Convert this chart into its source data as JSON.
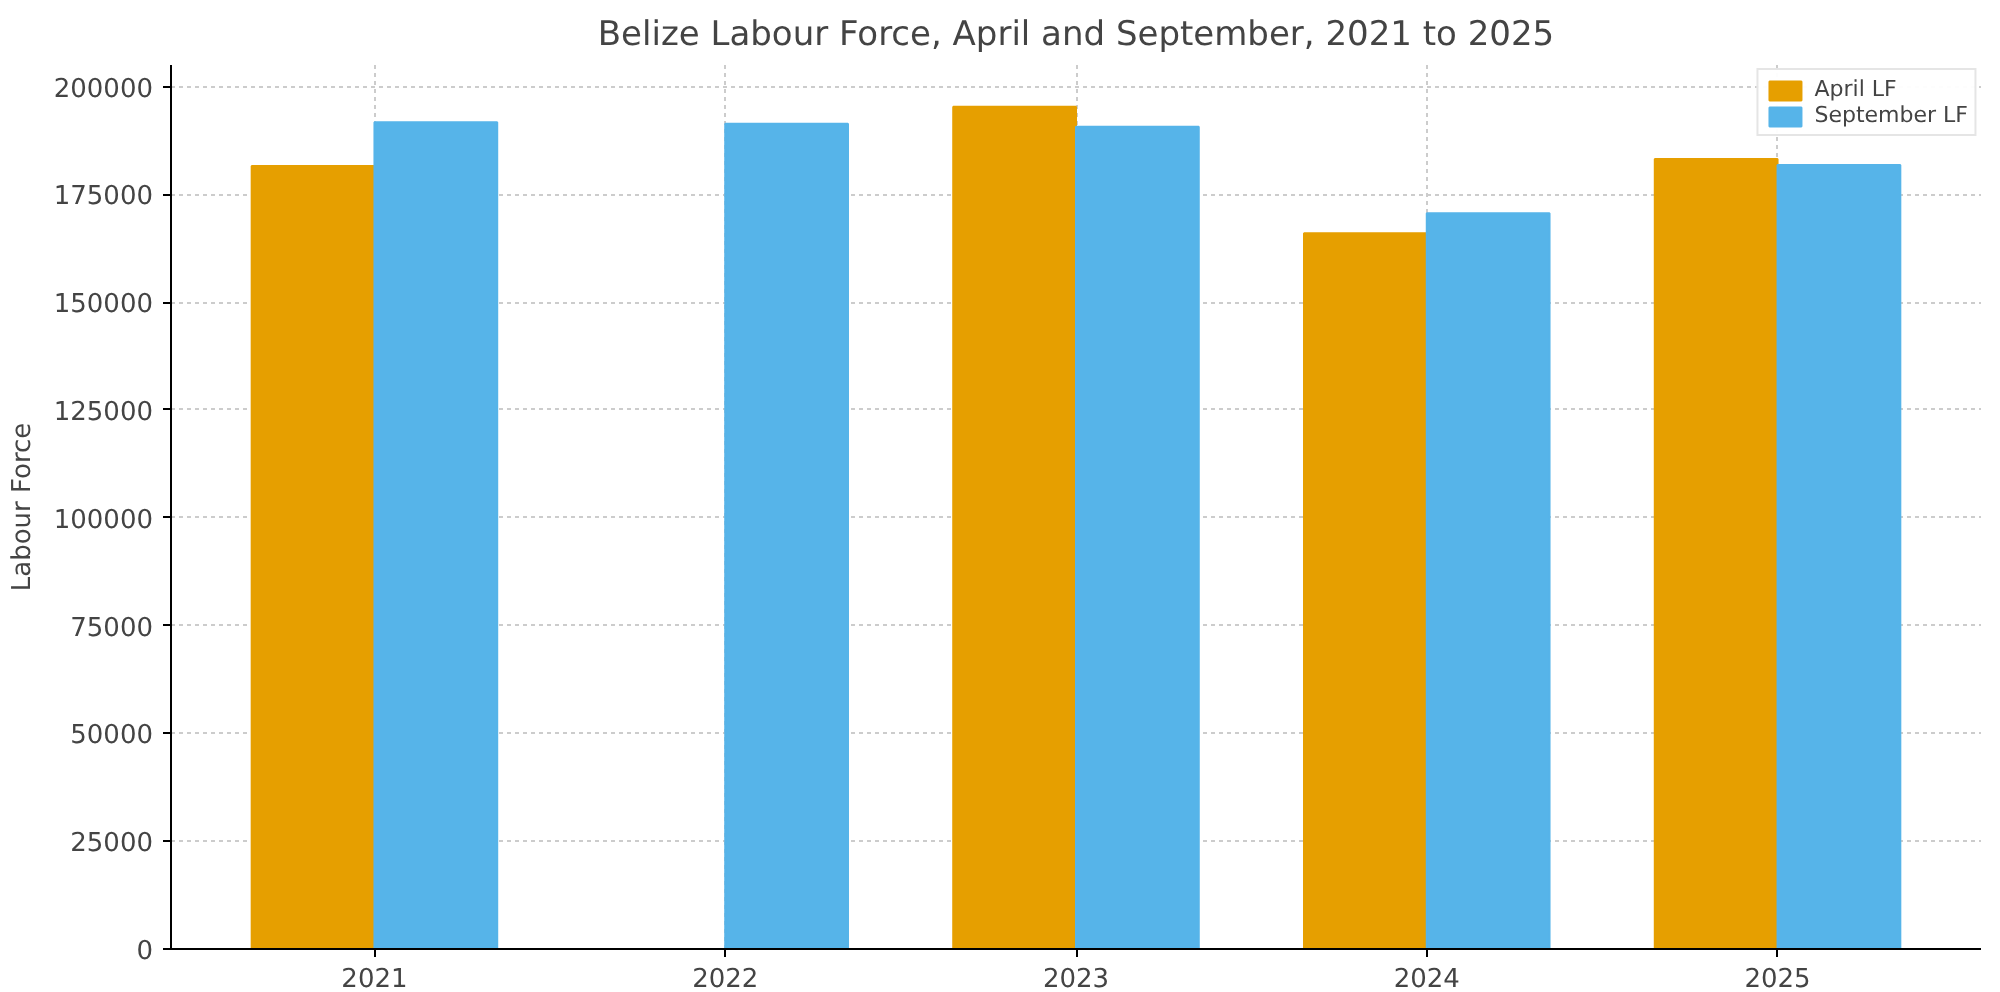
{
  "chart_data": {
    "type": "bar",
    "title": "Belize Labour Force, April and September, 2021 to 2025",
    "ylabel": "Labour Force",
    "categories": [
      "2021",
      "2022",
      "2023",
      "2024",
      "2025"
    ],
    "series": [
      {
        "name": "April LF",
        "color": "#e69f00",
        "values": [
          181600,
          null,
          195300,
          166000,
          183200
        ]
      },
      {
        "name": "September LF",
        "color": "#56b4e9",
        "values": [
          191700,
          191400,
          190700,
          170600,
          181800
        ]
      }
    ],
    "ylim": [
      0,
      205000
    ],
    "yticks": [
      0,
      25000,
      50000,
      75000,
      100000,
      125000,
      150000,
      175000,
      200000
    ],
    "grid": true,
    "legend": "top right"
  }
}
